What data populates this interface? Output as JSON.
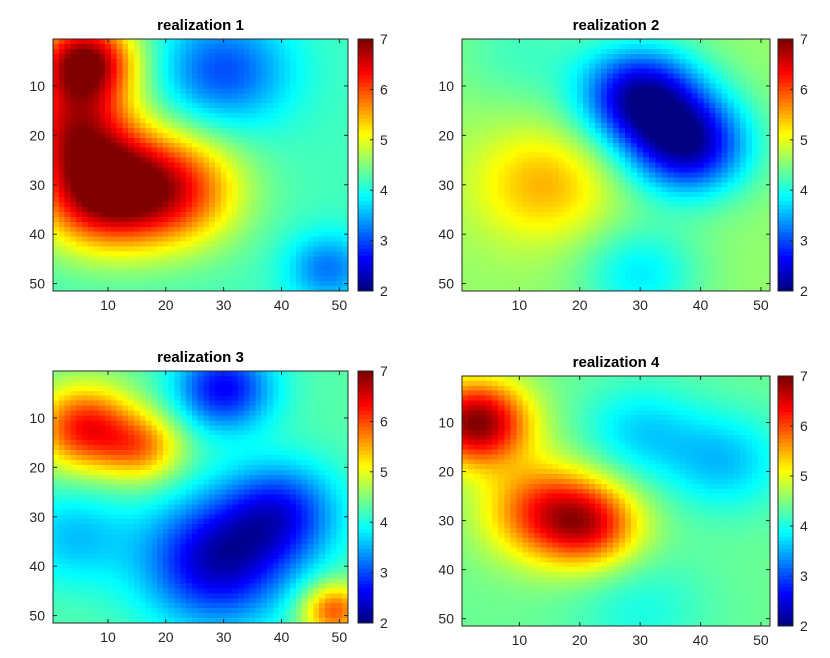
{
  "chart_data": [
    {
      "type": "heatmap",
      "title": "realization 1",
      "xlabel": "",
      "ylabel": "",
      "xlim": [
        0.5,
        51.5
      ],
      "ylim": [
        0.5,
        51.5
      ],
      "y_reversed": true,
      "x_ticks": [
        10,
        20,
        30,
        40,
        50
      ],
      "y_ticks": [
        10,
        20,
        30,
        40,
        50
      ],
      "colormap": "jet",
      "color_range": [
        2,
        7
      ],
      "colorbar_ticks": [
        2,
        3,
        4,
        5,
        6,
        7
      ],
      "field_features": [
        {
          "x": 6,
          "y": 5,
          "value": 7.0,
          "spread": 6
        },
        {
          "x": 9,
          "y": 31,
          "value": 7.0,
          "spread": 8
        },
        {
          "x": 22,
          "y": 31,
          "value": 6.0,
          "spread": 8
        },
        {
          "x": 4,
          "y": 18,
          "value": 6.0,
          "spread": 7
        },
        {
          "x": 30,
          "y": 7,
          "value": 3.0,
          "spread": 8
        },
        {
          "x": 48,
          "y": 47,
          "value": 3.2,
          "spread": 5
        }
      ],
      "base_value": 4.2
    },
    {
      "type": "heatmap",
      "title": "realization 2",
      "xlabel": "",
      "ylabel": "",
      "xlim": [
        0.5,
        51.5
      ],
      "ylim": [
        0.5,
        51.5
      ],
      "y_reversed": true,
      "x_ticks": [
        10,
        20,
        30,
        40,
        50
      ],
      "y_ticks": [
        10,
        20,
        30,
        40,
        50
      ],
      "colormap": "jet",
      "color_range": [
        2,
        7
      ],
      "colorbar_ticks": [
        2,
        3,
        4,
        5,
        6,
        7
      ],
      "field_features": [
        {
          "x": 30,
          "y": 12,
          "value": 2.3,
          "spread": 7
        },
        {
          "x": 38,
          "y": 22,
          "value": 2.3,
          "spread": 7
        },
        {
          "x": 14,
          "y": 30,
          "value": 5.5,
          "spread": 8
        },
        {
          "x": 30,
          "y": 48,
          "value": 3.8,
          "spread": 7
        },
        {
          "x": 10,
          "y": 3,
          "value": 4.2,
          "spread": 8
        }
      ],
      "base_value": 4.6
    },
    {
      "type": "heatmap",
      "title": "realization 3",
      "xlabel": "",
      "ylabel": "",
      "xlim": [
        0.5,
        51.5
      ],
      "ylim": [
        0.5,
        51.5
      ],
      "y_reversed": true,
      "x_ticks": [
        10,
        20,
        30,
        40,
        50
      ],
      "y_ticks": [
        10,
        20,
        30,
        40,
        50
      ],
      "colormap": "jet",
      "color_range": [
        2,
        7
      ],
      "colorbar_ticks": [
        2,
        3,
        4,
        5,
        6,
        7
      ],
      "field_features": [
        {
          "x": 6,
          "y": 12,
          "value": 6.3,
          "spread": 6
        },
        {
          "x": 16,
          "y": 16,
          "value": 5.6,
          "spread": 5
        },
        {
          "x": 30,
          "y": 4,
          "value": 2.6,
          "spread": 6
        },
        {
          "x": 29,
          "y": 39,
          "value": 2.3,
          "spread": 9
        },
        {
          "x": 40,
          "y": 29,
          "value": 2.9,
          "spread": 7
        },
        {
          "x": 49,
          "y": 49,
          "value": 6.0,
          "spread": 4
        },
        {
          "x": 4,
          "y": 34,
          "value": 3.6,
          "spread": 7
        }
      ],
      "base_value": 4.3
    },
    {
      "type": "heatmap",
      "title": "realization 4",
      "xlabel": "",
      "ylabel": "",
      "xlim": [
        0.5,
        51.5
      ],
      "ylim": [
        0.5,
        51.5
      ],
      "y_reversed": true,
      "x_ticks": [
        10,
        20,
        30,
        40,
        50
      ],
      "y_ticks": [
        10,
        20,
        30,
        40,
        50
      ],
      "colormap": "jet",
      "color_range": [
        2,
        7
      ],
      "colorbar_ticks": [
        2,
        3,
        4,
        5,
        6,
        7
      ],
      "field_features": [
        {
          "x": 3,
          "y": 10,
          "value": 7.0,
          "spread": 6
        },
        {
          "x": 14,
          "y": 28,
          "value": 6.0,
          "spread": 7
        },
        {
          "x": 22,
          "y": 31,
          "value": 6.0,
          "spread": 6
        },
        {
          "x": 30,
          "y": 12,
          "value": 3.7,
          "spread": 7
        },
        {
          "x": 44,
          "y": 18,
          "value": 3.6,
          "spread": 7
        },
        {
          "x": 30,
          "y": 48,
          "value": 4.0,
          "spread": 8
        }
      ],
      "base_value": 4.4
    }
  ]
}
